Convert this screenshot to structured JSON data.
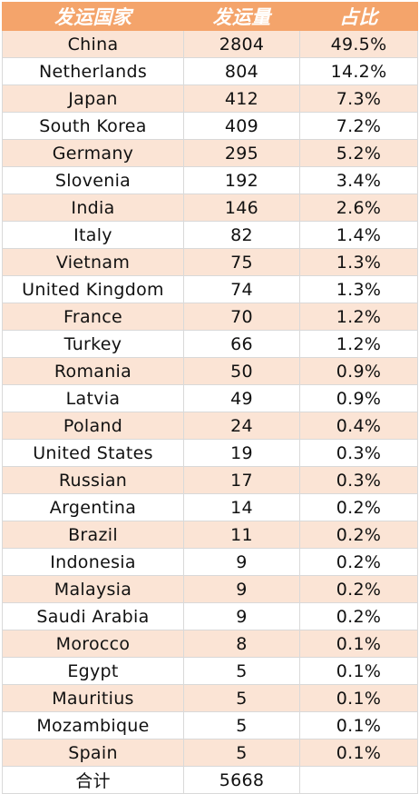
{
  "table": {
    "headers": [
      "发运国家",
      "发运量",
      "占比"
    ],
    "rows": [
      {
        "country": "China",
        "volume": "2804",
        "share": "49.5%"
      },
      {
        "country": "Netherlands",
        "volume": "804",
        "share": "14.2%"
      },
      {
        "country": "Japan",
        "volume": "412",
        "share": "7.3%"
      },
      {
        "country": "South Korea",
        "volume": "409",
        "share": "7.2%"
      },
      {
        "country": "Germany",
        "volume": "295",
        "share": "5.2%"
      },
      {
        "country": "Slovenia",
        "volume": "192",
        "share": "3.4%"
      },
      {
        "country": "India",
        "volume": "146",
        "share": "2.6%"
      },
      {
        "country": "Italy",
        "volume": "82",
        "share": "1.4%"
      },
      {
        "country": "Vietnam",
        "volume": "75",
        "share": "1.3%"
      },
      {
        "country": "United Kingdom",
        "volume": "74",
        "share": "1.3%"
      },
      {
        "country": "France",
        "volume": "70",
        "share": "1.2%"
      },
      {
        "country": "Turkey",
        "volume": "66",
        "share": "1.2%"
      },
      {
        "country": "Romania",
        "volume": "50",
        "share": "0.9%"
      },
      {
        "country": "Latvia",
        "volume": "49",
        "share": "0.9%"
      },
      {
        "country": "Poland",
        "volume": "24",
        "share": "0.4%"
      },
      {
        "country": "United States",
        "volume": "19",
        "share": "0.3%"
      },
      {
        "country": "Russian",
        "volume": "17",
        "share": "0.3%"
      },
      {
        "country": "Argentina",
        "volume": "14",
        "share": "0.2%"
      },
      {
        "country": "Brazil",
        "volume": "11",
        "share": "0.2%"
      },
      {
        "country": "Indonesia",
        "volume": "9",
        "share": "0.2%"
      },
      {
        "country": "Malaysia",
        "volume": "9",
        "share": "0.2%"
      },
      {
        "country": "Saudi Arabia",
        "volume": "9",
        "share": "0.2%"
      },
      {
        "country": "Morocco",
        "volume": "8",
        "share": "0.1%"
      },
      {
        "country": "Egypt",
        "volume": "5",
        "share": "0.1%"
      },
      {
        "country": "Mauritius",
        "volume": "5",
        "share": "0.1%"
      },
      {
        "country": "Mozambique",
        "volume": "5",
        "share": "0.1%"
      },
      {
        "country": "Spain",
        "volume": "5",
        "share": "0.1%"
      }
    ],
    "total": {
      "label": "合计",
      "volume": "5668",
      "share": ""
    }
  },
  "colors": {
    "header_bg": "#f4a46b",
    "header_text": "#ffffff",
    "stripe_bg": "#fbe4d5",
    "border": "#d9d9d9"
  }
}
